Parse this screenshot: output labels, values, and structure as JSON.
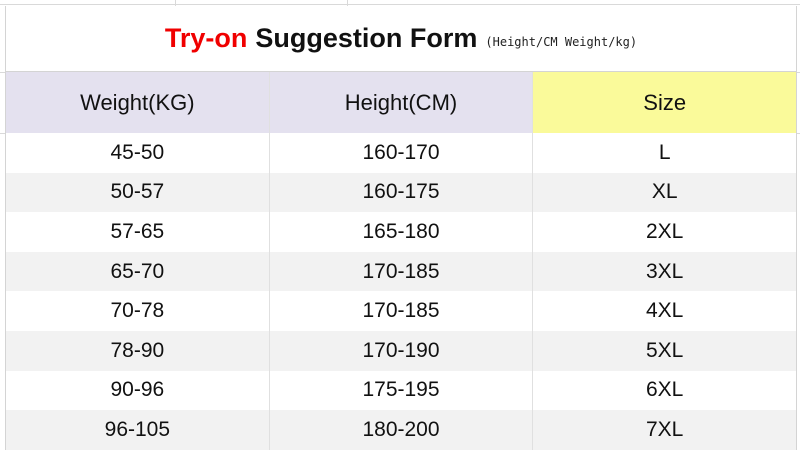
{
  "title": {
    "highlight": "Try-on",
    "main": "Suggestion Form",
    "note": "(Height/CM Weight/kg)"
  },
  "colors": {
    "highlight": "#f00000",
    "header_bg": "#e4e1ef",
    "size_header_bg": "#fafa9a",
    "alt_row_bg": "#f2f2f2"
  },
  "table": {
    "headers": [
      "Weight(KG)",
      "Height(CM)",
      "Size"
    ],
    "rows": [
      [
        "45-50",
        "160-170",
        "L"
      ],
      [
        "50-57",
        "160-175",
        "XL"
      ],
      [
        "57-65",
        "165-180",
        "2XL"
      ],
      [
        "65-70",
        "170-185",
        "3XL"
      ],
      [
        "70-78",
        "170-185",
        "4XL"
      ],
      [
        "78-90",
        "170-190",
        "5XL"
      ],
      [
        "90-96",
        "175-195",
        "6XL"
      ],
      [
        "96-105",
        "180-200",
        "7XL"
      ]
    ]
  }
}
